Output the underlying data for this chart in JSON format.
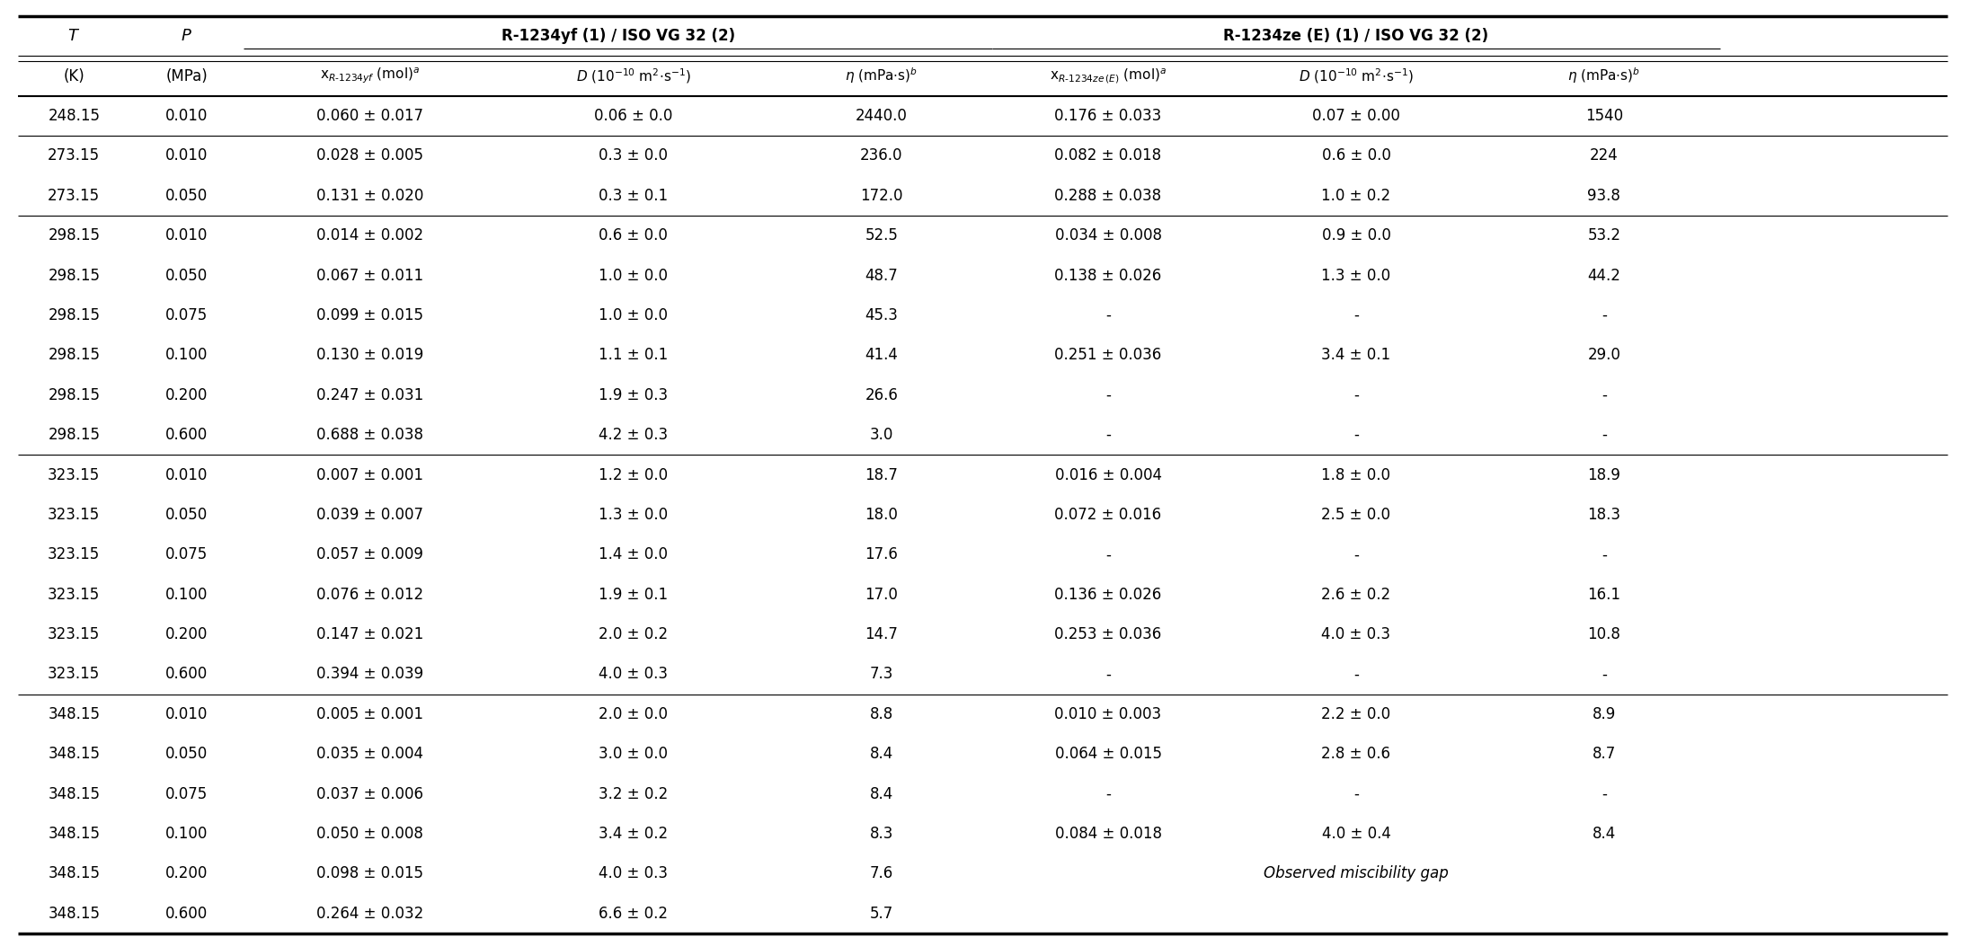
{
  "bg_color": "#ffffff",
  "text_color": "#000000",
  "font_size": 12.0,
  "group1_label": "R-1234yf (1) / ISO VG 32 (2)",
  "group2_label": "R-1234ze (E) (1) / ISO VG 32 (2)",
  "rows": [
    [
      "248.15",
      "0.010",
      "0.060 ± 0.017",
      "0.06 ± 0.0",
      "2440.0",
      "0.176 ± 0.033",
      "0.07 ± 0.00",
      "1540"
    ],
    [
      "273.15",
      "0.010",
      "0.028 ± 0.005",
      "0.3 ± 0.0",
      "236.0",
      "0.082 ± 0.018",
      "0.6 ± 0.0",
      "224"
    ],
    [
      "273.15",
      "0.050",
      "0.131 ± 0.020",
      "0.3 ± 0.1",
      "172.0",
      "0.288 ± 0.038",
      "1.0 ± 0.2",
      "93.8"
    ],
    [
      "298.15",
      "0.010",
      "0.014 ± 0.002",
      "0.6 ± 0.0",
      "52.5",
      "0.034 ± 0.008",
      "0.9 ± 0.0",
      "53.2"
    ],
    [
      "298.15",
      "0.050",
      "0.067 ± 0.011",
      "1.0 ± 0.0",
      "48.7",
      "0.138 ± 0.026",
      "1.3 ± 0.0",
      "44.2"
    ],
    [
      "298.15",
      "0.075",
      "0.099 ± 0.015",
      "1.0 ± 0.0",
      "45.3",
      "-",
      "-",
      "-"
    ],
    [
      "298.15",
      "0.100",
      "0.130 ± 0.019",
      "1.1 ± 0.1",
      "41.4",
      "0.251 ± 0.036",
      "3.4 ± 0.1",
      "29.0"
    ],
    [
      "298.15",
      "0.200",
      "0.247 ± 0.031",
      "1.9 ± 0.3",
      "26.6",
      "-",
      "-",
      "-"
    ],
    [
      "298.15",
      "0.600",
      "0.688 ± 0.038",
      "4.2 ± 0.3",
      "3.0",
      "-",
      "-",
      "-"
    ],
    [
      "323.15",
      "0.010",
      "0.007 ± 0.001",
      "1.2 ± 0.0",
      "18.7",
      "0.016 ± 0.004",
      "1.8 ± 0.0",
      "18.9"
    ],
    [
      "323.15",
      "0.050",
      "0.039 ± 0.007",
      "1.3 ± 0.0",
      "18.0",
      "0.072 ± 0.016",
      "2.5 ± 0.0",
      "18.3"
    ],
    [
      "323.15",
      "0.075",
      "0.057 ± 0.009",
      "1.4 ± 0.0",
      "17.6",
      "-",
      "-",
      "-"
    ],
    [
      "323.15",
      "0.100",
      "0.076 ± 0.012",
      "1.9 ± 0.1",
      "17.0",
      "0.136 ± 0.026",
      "2.6 ± 0.2",
      "16.1"
    ],
    [
      "323.15",
      "0.200",
      "0.147 ± 0.021",
      "2.0 ± 0.2",
      "14.7",
      "0.253 ± 0.036",
      "4.0 ± 0.3",
      "10.8"
    ],
    [
      "323.15",
      "0.600",
      "0.394 ± 0.039",
      "4.0 ± 0.3",
      "7.3",
      "-",
      "-",
      "-"
    ],
    [
      "348.15",
      "0.010",
      "0.005 ± 0.001",
      "2.0 ± 0.0",
      "8.8",
      "0.010 ± 0.003",
      "2.2 ± 0.0",
      "8.9"
    ],
    [
      "348.15",
      "0.050",
      "0.035 ± 0.004",
      "3.0 ± 0.0",
      "8.4",
      "0.064 ± 0.015",
      "2.8 ± 0.6",
      "8.7"
    ],
    [
      "348.15",
      "0.075",
      "0.037 ± 0.006",
      "3.2 ± 0.2",
      "8.4",
      "-",
      "-",
      "-"
    ],
    [
      "348.15",
      "0.100",
      "0.050 ± 0.008",
      "3.4 ± 0.2",
      "8.3",
      "0.084 ± 0.018",
      "4.0 ± 0.4",
      "8.4"
    ],
    [
      "348.15",
      "0.200",
      "0.098 ± 0.015",
      "4.0 ± 0.3",
      "7.6",
      "OBS_MISC",
      "",
      ""
    ],
    [
      "348.15",
      "0.600",
      "0.264 ± 0.032",
      "6.6 ± 0.2",
      "5.7",
      "",
      "",
      ""
    ]
  ],
  "sep_after_data_rows": [
    0,
    2,
    8,
    14
  ],
  "lw_thick": 2.5,
  "lw_mid": 1.5,
  "lw_thin": 0.8
}
